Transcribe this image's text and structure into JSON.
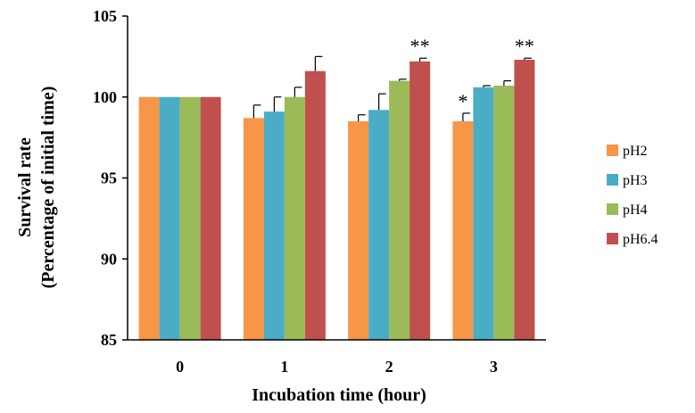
{
  "chart_data": {
    "type": "bar",
    "xlabel": "Incubation  time (hour)",
    "ylabel_line1": "Survival  rate",
    "ylabel_line2": "(Percentage  of  initial time)",
    "categories": [
      "0",
      "1",
      "2",
      "3"
    ],
    "ylim": [
      85,
      105
    ],
    "yticks": [
      "85",
      "90",
      "95",
      "100",
      "105"
    ],
    "legend_position": "right",
    "series": [
      {
        "name": "pH2",
        "color": "#F79646",
        "values": [
          100,
          98.7,
          98.5,
          98.5
        ],
        "errors": [
          0,
          0.8,
          0.4,
          0.5
        ]
      },
      {
        "name": "pH3",
        "color": "#4BACC6",
        "values": [
          100,
          99.1,
          99.2,
          100.6
        ],
        "errors": [
          0,
          0.9,
          1.0,
          0.1
        ]
      },
      {
        "name": "pH4",
        "color": "#9BBB59",
        "values": [
          100,
          100.0,
          101.0,
          100.7
        ],
        "errors": [
          0,
          0.6,
          0.1,
          0.3
        ]
      },
      {
        "name": "pH6.4",
        "color": "#C0504D",
        "values": [
          100,
          101.6,
          102.2,
          102.3
        ],
        "errors": [
          0,
          0.9,
          0.2,
          0.1
        ]
      }
    ],
    "annotations": [
      {
        "category": "2",
        "series": "pH6.4",
        "text": "**"
      },
      {
        "category": "3",
        "series": "pH2",
        "text": "*"
      },
      {
        "category": "3",
        "series": "pH6.4",
        "text": "**"
      }
    ]
  }
}
